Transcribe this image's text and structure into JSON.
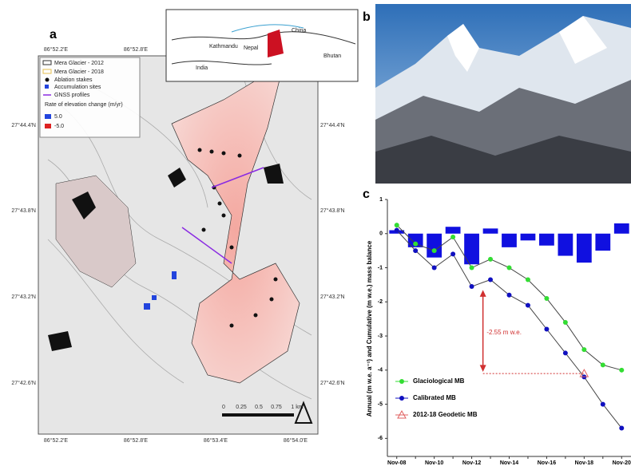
{
  "panel_labels": [
    "a",
    "b",
    "c"
  ],
  "map": {
    "legend": [
      "Mera Glacier - 2012",
      "Mera Glacier - 2018",
      "Ablation stakes",
      "Accumulation sites",
      "GNSS profiles",
      "Rate of elevation change (m/yr)",
      "5.0",
      "-5.0"
    ],
    "top_coords": [
      "86°52.2'E",
      "86°52.8'E"
    ],
    "bottom_coords": [
      "86°52.2'E",
      "86°52.8'E",
      "86°53.4'E",
      "86°54.0'E"
    ],
    "left_coords": [
      "27°44.4'N",
      "27°43.8'N",
      "27°43.2'N",
      "27°42.6'N"
    ],
    "right_coords": [
      "27°44.4'N",
      "27°43.8'N",
      "27°43.2'N",
      "27°42.6'N"
    ],
    "scale": [
      "0",
      "0.25",
      "0.5",
      "0.75",
      "1 km"
    ],
    "inset": [
      "China",
      "Nepal",
      "India",
      "Bhutan",
      "Kathmandu"
    ]
  },
  "chart_data": {
    "type": "line",
    "y_label": "Annual (m w.e. a⁻¹) and Cumulative (m w.e.) mass balance",
    "categories": [
      "Nov-08",
      null,
      "Nov-10",
      null,
      "Nov-12",
      null,
      "Nov-14",
      null,
      "Nov-16",
      null,
      "Nov-18",
      null,
      "Nov-20"
    ],
    "bars": {
      "color": "#1010e0",
      "values": [
        0.1,
        -0.4,
        -0.7,
        0.2,
        -0.9,
        0.15,
        -0.4,
        -0.2,
        -0.35,
        -0.65,
        -0.85,
        -0.5,
        0.3
      ]
    },
    "series": [
      {
        "name": "Glaciological MB",
        "color": "#33dd33",
        "values": [
          0.25,
          -0.3,
          -0.5,
          -0.1,
          -1.0,
          -0.75,
          -1.0,
          -1.35,
          -1.9,
          -2.6,
          -3.4,
          -3.85,
          -4.0
        ]
      },
      {
        "name": "Calibrated MB",
        "color": "#1010c0",
        "values": [
          0.1,
          -0.5,
          -1.0,
          -0.6,
          -1.55,
          -1.35,
          -1.8,
          -2.1,
          -2.8,
          -3.5,
          -4.2,
          -5.0,
          -5.7
        ]
      },
      {
        "name": "2012-18 Geodetic MB",
        "color": "#e06060",
        "marker": "triangle",
        "values": [
          null,
          null,
          null,
          null,
          null,
          null,
          null,
          null,
          null,
          null,
          -4.1,
          null,
          null
        ]
      }
    ],
    "annotation": "-2.55 m w.e.",
    "ylim": [
      -6.6,
      1.0
    ],
    "yticks": [
      -6,
      -5,
      -4,
      -3,
      -2,
      -1,
      0,
      1
    ]
  }
}
